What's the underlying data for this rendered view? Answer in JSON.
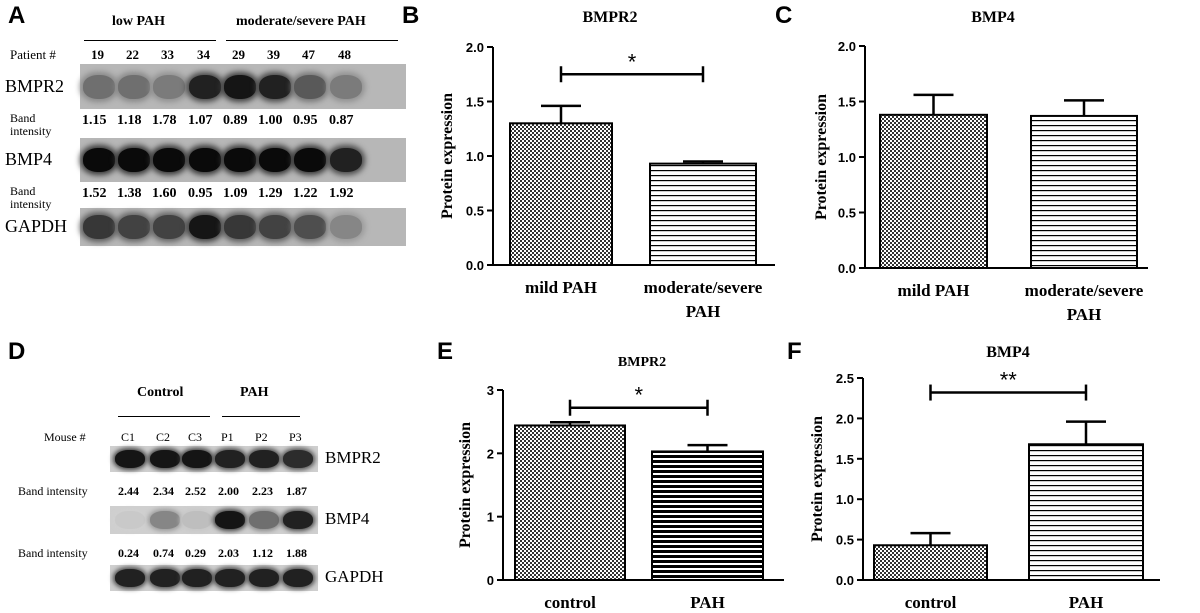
{
  "panel_a": {
    "letter": "A",
    "group_labels": [
      "low PAH",
      "moderate/severe PAH"
    ],
    "patient_label": "Patient #",
    "patients": [
      "19",
      "22",
      "33",
      "34",
      "29",
      "39",
      "47",
      "48"
    ],
    "rows": [
      {
        "name": "BMPR2",
        "intensity_label": "Band\nintensity",
        "intensities": [
          "1.15",
          "1.18",
          "1.78",
          "1.07",
          "0.89",
          "1.00",
          "0.95",
          "0.87"
        ],
        "darkness": [
          0.55,
          0.55,
          0.5,
          0.9,
          0.95,
          0.9,
          0.65,
          0.5
        ]
      },
      {
        "name": "BMP4",
        "intensity_label": "Band\nintensity",
        "intensities": [
          "1.52",
          "1.38",
          "1.60",
          "0.95",
          "1.09",
          "1.29",
          "1.22",
          "1.92"
        ],
        "darkness": [
          1,
          1,
          1,
          1,
          1,
          1,
          1,
          0.9
        ]
      },
      {
        "name": "GAPDH",
        "intensity_label": "",
        "intensities": [],
        "darkness": [
          0.8,
          0.75,
          0.75,
          0.95,
          0.8,
          0.75,
          0.7,
          0.45
        ]
      }
    ]
  },
  "panel_d": {
    "letter": "D",
    "group_labels": [
      "Control",
      "PAH"
    ],
    "mouse_label": "Mouse #",
    "mice": [
      "C1",
      "C2",
      "C3",
      "P1",
      "P2",
      "P3"
    ],
    "rows": [
      {
        "name": "BMPR2",
        "intensity_label": "Band intensity",
        "intensities": [
          "2.44",
          "2.34",
          "2.52",
          "2.00",
          "2.23",
          "1.87"
        ],
        "darkness": [
          0.95,
          0.95,
          0.95,
          0.9,
          0.9,
          0.85
        ]
      },
      {
        "name": "BMP4",
        "intensity_label": "Band intensity",
        "intensities": [
          "0.24",
          "0.74",
          "0.29",
          "2.03",
          "1.12",
          "1.88"
        ],
        "darkness": [
          0.15,
          0.45,
          0.2,
          0.95,
          0.55,
          0.9
        ]
      },
      {
        "name": "GAPDH",
        "intensity_label": "",
        "intensities": [],
        "darkness": [
          0.9,
          0.9,
          0.9,
          0.9,
          0.9,
          0.9
        ]
      }
    ]
  },
  "chart_data": [
    {
      "id": "B",
      "type": "bar",
      "letter": "B",
      "title": "BMPR2",
      "ylabel": "Protein expression",
      "xlabel": "",
      "categories": [
        "mild PAH",
        "moderate/severe\nPAH"
      ],
      "values": [
        1.3,
        0.93
      ],
      "errors": [
        0.16,
        0.02
      ],
      "patterns": [
        "checker",
        "hstripe"
      ],
      "ylim": [
        0,
        2.0
      ],
      "yticks": [
        "0.0",
        "0.5",
        "1.0",
        "1.5",
        "2.0"
      ],
      "significance": {
        "label": "*",
        "y": 1.75
      }
    },
    {
      "id": "C",
      "type": "bar",
      "letter": "C",
      "title": "BMP4",
      "ylabel": "Protein expression",
      "xlabel": "",
      "categories": [
        "mild PAH",
        "moderate/severe\nPAH"
      ],
      "values": [
        1.38,
        1.37
      ],
      "errors": [
        0.18,
        0.14
      ],
      "patterns": [
        "checker",
        "hstripe"
      ],
      "ylim": [
        0,
        2.0
      ],
      "yticks": [
        "0.0",
        "0.5",
        "1.0",
        "1.5",
        "2.0"
      ],
      "significance": null
    },
    {
      "id": "E",
      "type": "bar",
      "letter": "E",
      "title": "BMPR2",
      "ylabel": "Protein expression",
      "xlabel": "",
      "categories": [
        "control",
        "PAH"
      ],
      "values": [
        2.44,
        2.03
      ],
      "errors": [
        0.05,
        0.1
      ],
      "patterns": [
        "checker",
        "thickstripe"
      ],
      "ylim": [
        0,
        3
      ],
      "yticks": [
        "0",
        "1",
        "2",
        "3"
      ],
      "significance": {
        "label": "*",
        "y": 2.72
      }
    },
    {
      "id": "F",
      "type": "bar",
      "letter": "F",
      "title": "BMP4",
      "ylabel": "Protein expression",
      "xlabel": "",
      "categories": [
        "control",
        "PAH"
      ],
      "values": [
        0.43,
        1.68
      ],
      "errors": [
        0.15,
        0.28
      ],
      "patterns": [
        "checker",
        "hstripe"
      ],
      "ylim": [
        0,
        2.5
      ],
      "yticks": [
        "0.0",
        "0.5",
        "1.0",
        "1.5",
        "2.0",
        "2.5"
      ],
      "significance": {
        "label": "**",
        "y": 2.32
      }
    }
  ]
}
